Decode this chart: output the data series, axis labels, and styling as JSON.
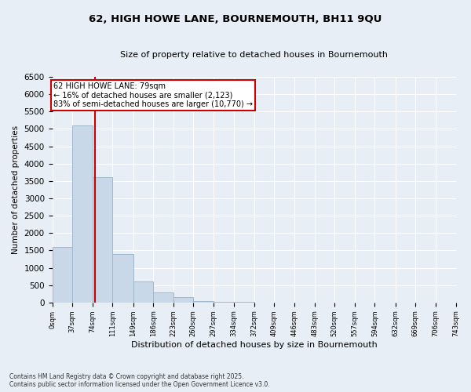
{
  "title_line1": "62, HIGH HOWE LANE, BOURNEMOUTH, BH11 9QU",
  "title_line2": "Size of property relative to detached houses in Bournemouth",
  "xlabel": "Distribution of detached houses by size in Bournemouth",
  "ylabel": "Number of detached properties",
  "bar_color": "#c8d8e8",
  "bar_edge_color": "#a0b8cc",
  "vline_color": "#cc0000",
  "vline_x": 79,
  "annotation_title": "62 HIGH HOWE LANE: 79sqm",
  "annotation_line1": "← 16% of detached houses are smaller (2,123)",
  "annotation_line2": "83% of semi-detached houses are larger (10,770) →",
  "bin_edges": [
    0,
    37,
    74,
    111,
    149,
    186,
    223,
    260,
    297,
    334,
    372,
    409,
    446,
    483,
    520,
    557,
    594,
    632,
    669,
    706,
    743
  ],
  "bar_heights": [
    1600,
    5100,
    3600,
    1400,
    600,
    300,
    150,
    50,
    30,
    10,
    5,
    3,
    2,
    1,
    1,
    0,
    0,
    0,
    0,
    0
  ],
  "ylim": [
    0,
    6500
  ],
  "yticks": [
    0,
    500,
    1000,
    1500,
    2000,
    2500,
    3000,
    3500,
    4000,
    4500,
    5000,
    5500,
    6000,
    6500
  ],
  "background_color": "#e8eef5",
  "grid_color": "#ffffff",
  "footer_line1": "Contains HM Land Registry data © Crown copyright and database right 2025.",
  "footer_line2": "Contains public sector information licensed under the Open Government Licence v3.0."
}
